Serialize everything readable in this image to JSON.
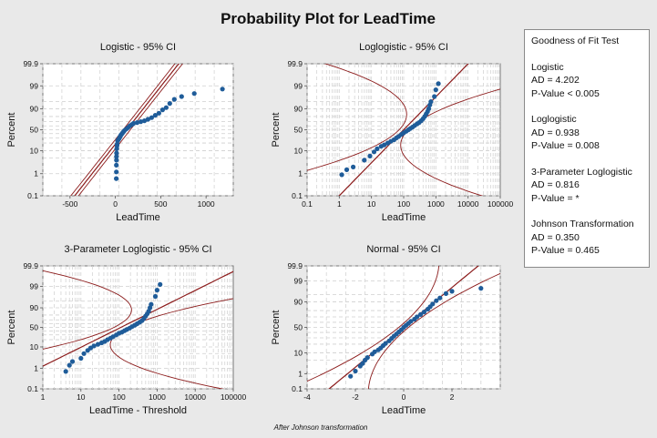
{
  "title": "Probability Plot for LeadTime",
  "footnote": "After Johnson transformation",
  "goodness_of_fit": {
    "heading": "Goodness of Fit Test",
    "entries": [
      {
        "name": "Logistic",
        "ad": "AD = 4.202",
        "p": "P-Value < 0.005"
      },
      {
        "name": "Loglogistic",
        "ad": "AD = 0.938",
        "p": "P-Value = 0.008"
      },
      {
        "name": "3-Parameter Loglogistic",
        "ad": "AD = 0.816",
        "p": "P-Value = *"
      },
      {
        "name": "Johnson Transformation",
        "ad": "AD = 0.350",
        "p": "P-Value = 0.465"
      }
    ]
  },
  "colors": {
    "points": "#1f5c99",
    "fit_lines": "#8b1a1a",
    "panel_bg": "#ffffff",
    "page_bg": "#e9e9e9"
  },
  "chart_data": [
    {
      "type": "scatter",
      "title": "Logistic - 95% CI",
      "xlabel": "LeadTime",
      "ylabel": "Percent",
      "x_scale": "linear",
      "y_scale": "logistic",
      "xlim": [
        -800,
        1300
      ],
      "ylim": [
        0.1,
        99.9
      ],
      "x_ticks": [
        -500,
        0,
        500,
        1000
      ],
      "x_tick_labels": [
        "-500",
        "0",
        "500",
        "1000"
      ],
      "y_ticks": [
        0.1,
        1,
        10,
        50,
        90,
        99,
        99.9
      ],
      "y_tick_labels": [
        "0.1",
        "1",
        "10",
        "50",
        "90",
        "99",
        "99.9"
      ],
      "fit_line": {
        "mu": 125,
        "s": 83
      },
      "ci": {
        "halfwidth": 40,
        "grow": 0.05
      },
      "points": [
        [
          10,
          0.6
        ],
        [
          11,
          1.2
        ],
        [
          11,
          2.4
        ],
        [
          12,
          4
        ],
        [
          12,
          5.7
        ],
        [
          13,
          8
        ],
        [
          15,
          12
        ],
        [
          18,
          16
        ],
        [
          20,
          18
        ],
        [
          25,
          24
        ],
        [
          32,
          26
        ],
        [
          40,
          28
        ],
        [
          48,
          31
        ],
        [
          55,
          34
        ],
        [
          62,
          37
        ],
        [
          70,
          39
        ],
        [
          80,
          42
        ],
        [
          90,
          45
        ],
        [
          100,
          48
        ],
        [
          120,
          52
        ],
        [
          140,
          56
        ],
        [
          160,
          60
        ],
        [
          180,
          63
        ],
        [
          200,
          66
        ],
        [
          240,
          68
        ],
        [
          280,
          70
        ],
        [
          320,
          72
        ],
        [
          360,
          75
        ],
        [
          400,
          78
        ],
        [
          440,
          82
        ],
        [
          480,
          85
        ],
        [
          520,
          89
        ],
        [
          560,
          91
        ],
        [
          600,
          94
        ],
        [
          650,
          96
        ],
        [
          730,
          97
        ],
        [
          870,
          97.8
        ],
        [
          1180,
          98.6
        ]
      ]
    },
    {
      "type": "scatter",
      "title": "Loglogistic - 95% CI",
      "xlabel": "LeadTime",
      "ylabel": "Percent",
      "x_scale": "log",
      "y_scale": "logistic",
      "xlim": [
        0.1,
        100000
      ],
      "ylim": [
        0.1,
        99.9
      ],
      "x_ticks": [
        0.1,
        1,
        10,
        100,
        1000,
        10000,
        100000
      ],
      "x_tick_labels": [
        "0.1",
        "1",
        "10",
        "100",
        "1000",
        "10000",
        "100000"
      ],
      "y_ticks": [
        0.1,
        1,
        10,
        50,
        90,
        99,
        99.9
      ],
      "y_tick_labels": [
        "0.1",
        "1",
        "10",
        "50",
        "90",
        "99",
        "99.9"
      ],
      "fit_line": {
        "mu": 2.0,
        "s": 0.29
      },
      "ci": {
        "halfwidth": 0.14,
        "grow": 0.09
      },
      "points": [
        [
          1.2,
          0.9
        ],
        [
          1.7,
          1.5
        ],
        [
          2.7,
          2
        ],
        [
          6,
          4
        ],
        [
          9,
          6
        ],
        [
          12,
          9
        ],
        [
          15,
          12
        ],
        [
          20,
          15
        ],
        [
          25,
          17
        ],
        [
          32,
          20
        ],
        [
          40,
          23
        ],
        [
          50,
          26
        ],
        [
          60,
          30
        ],
        [
          70,
          33
        ],
        [
          85,
          38
        ],
        [
          100,
          42
        ],
        [
          120,
          46
        ],
        [
          140,
          50
        ],
        [
          160,
          53
        ],
        [
          190,
          57
        ],
        [
          220,
          61
        ],
        [
          260,
          65
        ],
        [
          300,
          68
        ],
        [
          350,
          72
        ],
        [
          400,
          76
        ],
        [
          450,
          80
        ],
        [
          500,
          84
        ],
        [
          550,
          87
        ],
        [
          600,
          90
        ],
        [
          650,
          93
        ],
        [
          700,
          95
        ],
        [
          900,
          97
        ],
        [
          1000,
          98.5
        ],
        [
          1200,
          99.2
        ]
      ]
    },
    {
      "type": "scatter",
      "title": "3-Parameter Loglogistic - 95% CI",
      "xlabel": "LeadTime - Threshold",
      "ylabel": "Percent",
      "x_scale": "log",
      "y_scale": "logistic",
      "xlim": [
        1,
        100000
      ],
      "ylim": [
        0.1,
        99.9
      ],
      "x_ticks": [
        1,
        10,
        100,
        1000,
        10000,
        100000
      ],
      "x_tick_labels": [
        "1",
        "10",
        "100",
        "1000",
        "10000",
        "100000"
      ],
      "y_ticks": [
        0.1,
        1,
        10,
        50,
        90,
        99,
        99.9
      ],
      "y_tick_labels": [
        "0.1",
        "1",
        "10",
        "50",
        "90",
        "99",
        "99.9"
      ],
      "fit_line": {
        "mu": 2.05,
        "s": 0.47
      },
      "ci": {
        "halfwidth": 0.18,
        "grow": 0.12
      },
      "points": [
        [
          4,
          0.7
        ],
        [
          5,
          1.4
        ],
        [
          6,
          2.1
        ],
        [
          10,
          3
        ],
        [
          12,
          5
        ],
        [
          15,
          7
        ],
        [
          18,
          9
        ],
        [
          22,
          11
        ],
        [
          28,
          13
        ],
        [
          35,
          15
        ],
        [
          42,
          17
        ],
        [
          50,
          20
        ],
        [
          60,
          23
        ],
        [
          70,
          26
        ],
        [
          85,
          30
        ],
        [
          100,
          34
        ],
        [
          120,
          37
        ],
        [
          140,
          41
        ],
        [
          160,
          44
        ],
        [
          190,
          48
        ],
        [
          220,
          52
        ],
        [
          260,
          56
        ],
        [
          300,
          60
        ],
        [
          350,
          64
        ],
        [
          400,
          68
        ],
        [
          450,
          73
        ],
        [
          500,
          78
        ],
        [
          550,
          82
        ],
        [
          600,
          86
        ],
        [
          650,
          90
        ],
        [
          700,
          93
        ],
        [
          900,
          97
        ],
        [
          1000,
          98.5
        ],
        [
          1200,
          99.2
        ]
      ]
    },
    {
      "type": "scatter",
      "title": "Normal - 95% CI",
      "xlabel": "LeadTime",
      "ylabel": "Percent",
      "x_scale": "linear",
      "y_scale": "normal",
      "xlim": [
        -4,
        4
      ],
      "ylim": [
        0.1,
        99.9
      ],
      "x_ticks": [
        -4,
        -2,
        0,
        2
      ],
      "x_tick_labels": [
        "-4",
        "-2",
        "0",
        "2"
      ],
      "y_ticks": [
        0.1,
        1,
        10,
        50,
        90,
        99,
        99.9
      ],
      "y_tick_labels": [
        "0.1",
        "1",
        "10",
        "50",
        "90",
        "99",
        "99.9"
      ],
      "fit_line": {
        "mu": 0,
        "s": 1
      },
      "ci": {
        "halfwidth": 0.2,
        "grow": 0.15
      },
      "points": [
        [
          -2.2,
          0.7
        ],
        [
          -2.0,
          1.4
        ],
        [
          -1.8,
          2.6
        ],
        [
          -1.7,
          3.5
        ],
        [
          -1.6,
          5
        ],
        [
          -1.5,
          6.5
        ],
        [
          -1.3,
          9
        ],
        [
          -1.2,
          11
        ],
        [
          -1.05,
          13
        ],
        [
          -0.95,
          15
        ],
        [
          -0.85,
          18
        ],
        [
          -0.75,
          21
        ],
        [
          -0.6,
          25
        ],
        [
          -0.5,
          29
        ],
        [
          -0.4,
          33
        ],
        [
          -0.3,
          37
        ],
        [
          -0.2,
          41
        ],
        [
          -0.1,
          45
        ],
        [
          0,
          50
        ],
        [
          0.1,
          54
        ],
        [
          0.2,
          58
        ],
        [
          0.3,
          62
        ],
        [
          0.45,
          66
        ],
        [
          0.55,
          70
        ],
        [
          0.7,
          74
        ],
        [
          0.85,
          78
        ],
        [
          1.0,
          82
        ],
        [
          1.1,
          85
        ],
        [
          1.2,
          88
        ],
        [
          1.35,
          91
        ],
        [
          1.5,
          93
        ],
        [
          1.75,
          95.5
        ],
        [
          2.0,
          96.5
        ],
        [
          3.2,
          97.5
        ]
      ]
    }
  ]
}
